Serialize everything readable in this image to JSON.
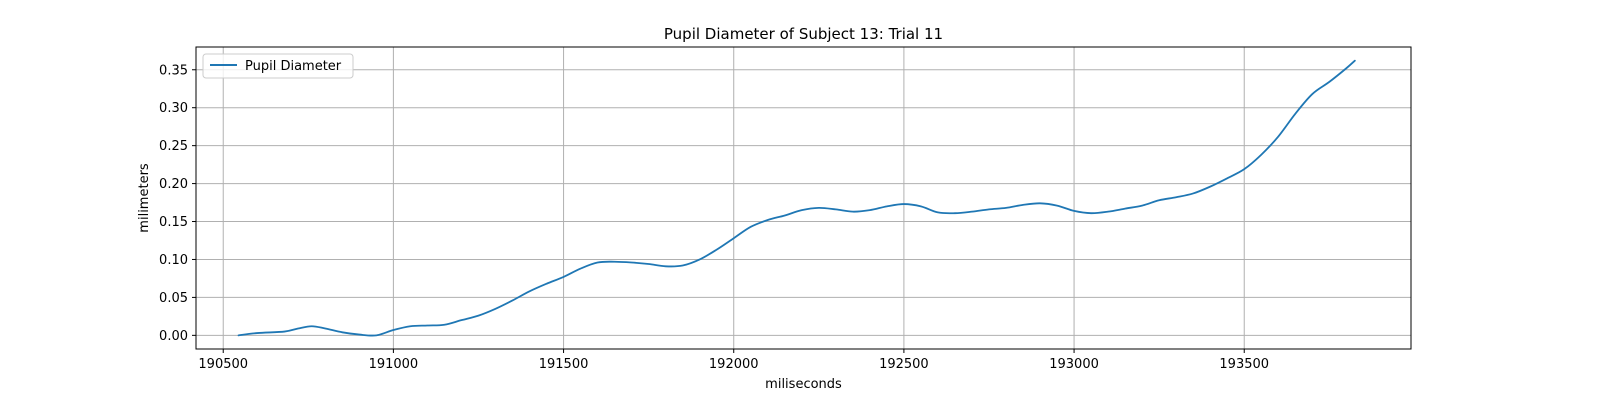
{
  "chart_data": {
    "type": "line",
    "title": "Pupil Diameter of Subject 13: Trial 11",
    "xlabel": "miliseconds",
    "ylabel": "milimeters",
    "xlim": [
      190420,
      193990
    ],
    "ylim": [
      -0.018,
      0.38
    ],
    "xticks": [
      190500,
      191000,
      191500,
      192000,
      192500,
      193000,
      193500
    ],
    "yticks": [
      0.0,
      0.05,
      0.1,
      0.15,
      0.2,
      0.25,
      0.3,
      0.35
    ],
    "xtick_labels": [
      "190500",
      "191000",
      "191500",
      "192000",
      "192500",
      "193000",
      "193500"
    ],
    "ytick_labels": [
      "0.00",
      "0.05",
      "0.10",
      "0.15",
      "0.20",
      "0.25",
      "0.30",
      "0.35"
    ],
    "grid": true,
    "legend_position": "top-left",
    "series": [
      {
        "name": "Pupil Diameter",
        "color": "#1f77b4",
        "x": [
          190545,
          190600,
          190680,
          190720,
          190760,
          190800,
          190850,
          190900,
          190950,
          191000,
          191050,
          191100,
          191150,
          191200,
          191250,
          191300,
          191350,
          191400,
          191450,
          191500,
          191550,
          191600,
          191650,
          191700,
          191750,
          191800,
          191850,
          191900,
          191950,
          192000,
          192050,
          192100,
          192150,
          192200,
          192250,
          192300,
          192350,
          192400,
          192450,
          192500,
          192550,
          192600,
          192650,
          192700,
          192750,
          192800,
          192850,
          192900,
          192950,
          193000,
          193050,
          193100,
          193150,
          193200,
          193250,
          193300,
          193350,
          193400,
          193450,
          193500,
          193550,
          193600,
          193650,
          193700,
          193750,
          193800,
          193825
        ],
        "y": [
          0.0,
          0.003,
          0.005,
          0.009,
          0.012,
          0.009,
          0.004,
          0.001,
          0.0,
          0.007,
          0.012,
          0.013,
          0.014,
          0.02,
          0.026,
          0.035,
          0.046,
          0.058,
          0.068,
          0.077,
          0.088,
          0.096,
          0.097,
          0.096,
          0.094,
          0.091,
          0.092,
          0.1,
          0.113,
          0.128,
          0.143,
          0.152,
          0.158,
          0.165,
          0.168,
          0.166,
          0.163,
          0.165,
          0.17,
          0.173,
          0.17,
          0.162,
          0.161,
          0.163,
          0.166,
          0.168,
          0.172,
          0.174,
          0.171,
          0.164,
          0.161,
          0.163,
          0.167,
          0.171,
          0.178,
          0.182,
          0.187,
          0.196,
          0.207,
          0.219,
          0.238,
          0.262,
          0.292,
          0.318,
          0.334,
          0.352,
          0.362
        ]
      }
    ]
  }
}
